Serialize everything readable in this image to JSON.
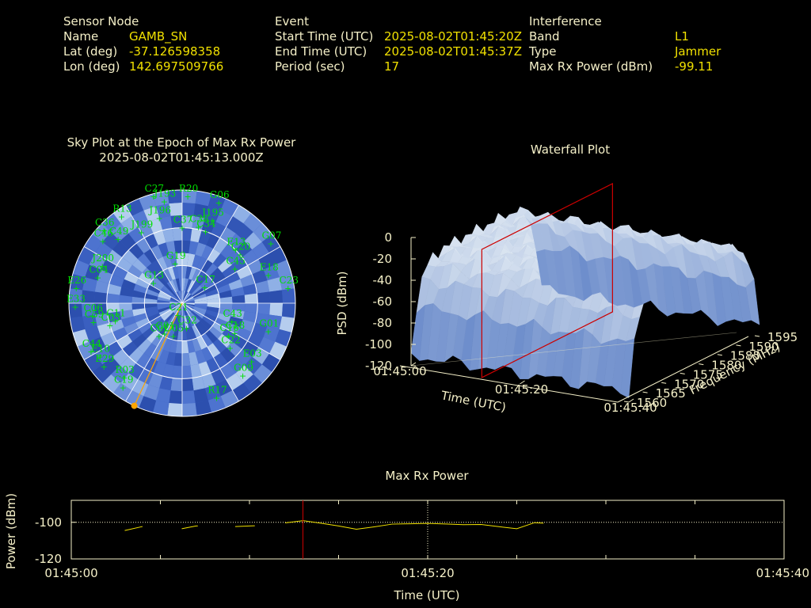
{
  "header": {
    "sensor": {
      "title": "Sensor Node",
      "rows": [
        {
          "label": "Name",
          "value": "GAMB_SN"
        },
        {
          "label": "Lat (deg)",
          "value": "-37.126598358"
        },
        {
          "label": "Lon (deg)",
          "value": "142.697509766"
        }
      ]
    },
    "event": {
      "title": "Event",
      "rows": [
        {
          "label": "Start Time (UTC)",
          "value": "2025-08-02T01:45:20Z"
        },
        {
          "label": "End Time (UTC)",
          "value": "2025-08-02T01:45:37Z"
        },
        {
          "label": "Period (sec)",
          "value": "17"
        }
      ]
    },
    "interference": {
      "title": "Interference",
      "rows": [
        {
          "label": "Band",
          "value": "L1"
        },
        {
          "label": "Type",
          "value": "Jammer"
        },
        {
          "label": "Max Rx Power (dBm)",
          "value": "-99.11"
        }
      ]
    }
  },
  "colors": {
    "text": "#f5f0c8",
    "value": "#f0e000",
    "satellite": "#00e000",
    "marker": "#cc0000",
    "direction": "#ffa500",
    "sky_fill": "#3a5fc0"
  },
  "chart_data": [
    {
      "type": "scatter",
      "projection": "polar-sky",
      "title": "Sky Plot at the Epoch of Max Rx Power",
      "subtitle": "2025-08-02T01:45:13.000Z",
      "elevation_rings_deg": [
        0,
        30,
        60
      ],
      "interference_azimuth_deg": 205,
      "satellites": [
        {
          "name": "C27",
          "az": 345,
          "el": 2
        },
        {
          "name": "R20",
          "az": 3,
          "el": 5
        },
        {
          "name": "J193",
          "az": 350,
          "el": 8
        },
        {
          "name": "G06",
          "az": 20,
          "el": 5
        },
        {
          "name": "R13",
          "az": 325,
          "el": 6
        },
        {
          "name": "J196",
          "az": 345,
          "el": 20
        },
        {
          "name": "J195",
          "az": 20,
          "el": 20
        },
        {
          "name": "C36",
          "az": 313,
          "el": 5
        },
        {
          "name": "C46",
          "az": 308,
          "el": 10
        },
        {
          "name": "C49",
          "az": 315,
          "el": 18
        },
        {
          "name": "J199",
          "az": 330,
          "el": 25
        },
        {
          "name": "C37",
          "az": 0,
          "el": 30
        },
        {
          "name": "C38",
          "az": 12,
          "el": 28
        },
        {
          "name": "C34",
          "az": 18,
          "el": 30
        },
        {
          "name": "G07",
          "az": 56,
          "el": 5
        },
        {
          "name": "E26",
          "az": 278,
          "el": 5
        },
        {
          "name": "J200",
          "az": 295,
          "el": 20
        },
        {
          "name": "C04",
          "az": 287,
          "el": 20
        },
        {
          "name": "G19",
          "az": 350,
          "el": 58
        },
        {
          "name": "E13",
          "az": 45,
          "el": 30
        },
        {
          "name": "C20",
          "az": 50,
          "el": 30
        },
        {
          "name": "C45",
          "az": 57,
          "el": 40
        },
        {
          "name": "E18",
          "az": 72,
          "el": 18
        },
        {
          "name": "G13",
          "az": 305,
          "el": 62
        },
        {
          "name": "C23",
          "az": 82,
          "el": 5
        },
        {
          "name": "C59",
          "az": 258,
          "el": 18
        },
        {
          "name": "C03",
          "az": 253,
          "el": 30
        },
        {
          "name": "C17",
          "az": 55,
          "el": 68
        },
        {
          "name": "E33",
          "az": 268,
          "el": 5
        },
        {
          "name": "C06",
          "az": 262,
          "el": 18
        },
        {
          "name": "C11",
          "az": 255,
          "el": 35
        },
        {
          "name": "C21",
          "az": 200,
          "el": 80
        },
        {
          "name": "C43",
          "az": 110,
          "el": 48
        },
        {
          "name": "C18",
          "az": 120,
          "el": 42
        },
        {
          "name": "C44",
          "az": 242,
          "el": 8
        },
        {
          "name": "E10",
          "az": 237,
          "el": 12
        },
        {
          "name": "C02",
          "az": 215,
          "el": 58
        },
        {
          "name": "C01",
          "az": 210,
          "el": 62
        },
        {
          "name": "C05",
          "az": 195,
          "el": 63
        },
        {
          "name": "C32",
          "az": 170,
          "el": 70
        },
        {
          "name": "C16",
          "az": 125,
          "el": 45
        },
        {
          "name": "E29",
          "az": 231,
          "el": 10
        },
        {
          "name": "G01",
          "az": 108,
          "el": 18
        },
        {
          "name": "C22",
          "az": 133,
          "el": 38
        },
        {
          "name": "R03",
          "az": 218,
          "el": 15
        },
        {
          "name": "E03",
          "az": 130,
          "el": 18
        },
        {
          "name": "C19",
          "az": 215,
          "el": 8
        },
        {
          "name": "G09",
          "az": 140,
          "el": 15
        },
        {
          "name": "R17",
          "az": 160,
          "el": 10
        }
      ]
    },
    {
      "type": "area",
      "projection": "3d-waterfall",
      "title": "Waterfall Plot",
      "xlabel": "Time (UTC)",
      "ylabel": "Frequency (MHz)",
      "zlabel": "PSD (dBm)",
      "x_ticks": [
        "01:45:00",
        "01:45:20",
        "01:45:40"
      ],
      "y_ticks": [
        "1560",
        "1565",
        "1570",
        "1575",
        "1580",
        "1585",
        "1590",
        "1595"
      ],
      "z_ticks": [
        "0",
        "-20",
        "-40",
        "-60",
        "-80",
        "-100",
        "-120"
      ],
      "xlim_sec": [
        0,
        40
      ],
      "ylim": [
        1560,
        1595
      ],
      "zlim": [
        -120,
        0
      ],
      "marker_time_sec": 13,
      "surface": {
        "freq_start": 1560,
        "freq_end": 1595,
        "time_start": 0,
        "time_end": 40,
        "peak_psd_dbm": -25,
        "floor_psd_dbm": -110
      }
    },
    {
      "type": "line",
      "title": "Max Rx Power",
      "xlabel": "Time (UTC)",
      "ylabel": "Power (dBm)",
      "x_ticks": [
        "01:45:00",
        "01:45:20",
        "01:45:40"
      ],
      "y_ticks": [
        "-100",
        "-120"
      ],
      "xlim_sec": [
        0,
        40
      ],
      "ylim": [
        -120,
        -88
      ],
      "reference_level": -100,
      "marker_time_sec": 13,
      "series": [
        {
          "segments": [
            [
              [
                3.0,
                -104.5
              ],
              [
                4.0,
                -102.3
              ]
            ],
            [
              [
                6.2,
                -103.5
              ],
              [
                7.0,
                -102.0
              ],
              [
                7.1,
                -102.0
              ]
            ],
            [
              [
                9.2,
                -102.3
              ],
              [
                10.0,
                -102.0
              ],
              [
                10.3,
                -101.9
              ]
            ],
            [
              [
                12.0,
                -100.3
              ],
              [
                13.0,
                -99.1
              ],
              [
                14.0,
                -100.5
              ],
              [
                15.0,
                -102.0
              ],
              [
                16.0,
                -103.8
              ],
              [
                17.0,
                -102.5
              ],
              [
                18.0,
                -101.0
              ],
              [
                19.0,
                -100.8
              ],
              [
                20.0,
                -100.6
              ],
              [
                21.0,
                -100.9
              ],
              [
                22.0,
                -101.3
              ],
              [
                23.0,
                -101.2
              ],
              [
                24.0,
                -102.4
              ],
              [
                25.0,
                -103.5
              ],
              [
                26.0,
                -100.2
              ],
              [
                26.5,
                -100.5
              ]
            ]
          ]
        }
      ]
    }
  ]
}
